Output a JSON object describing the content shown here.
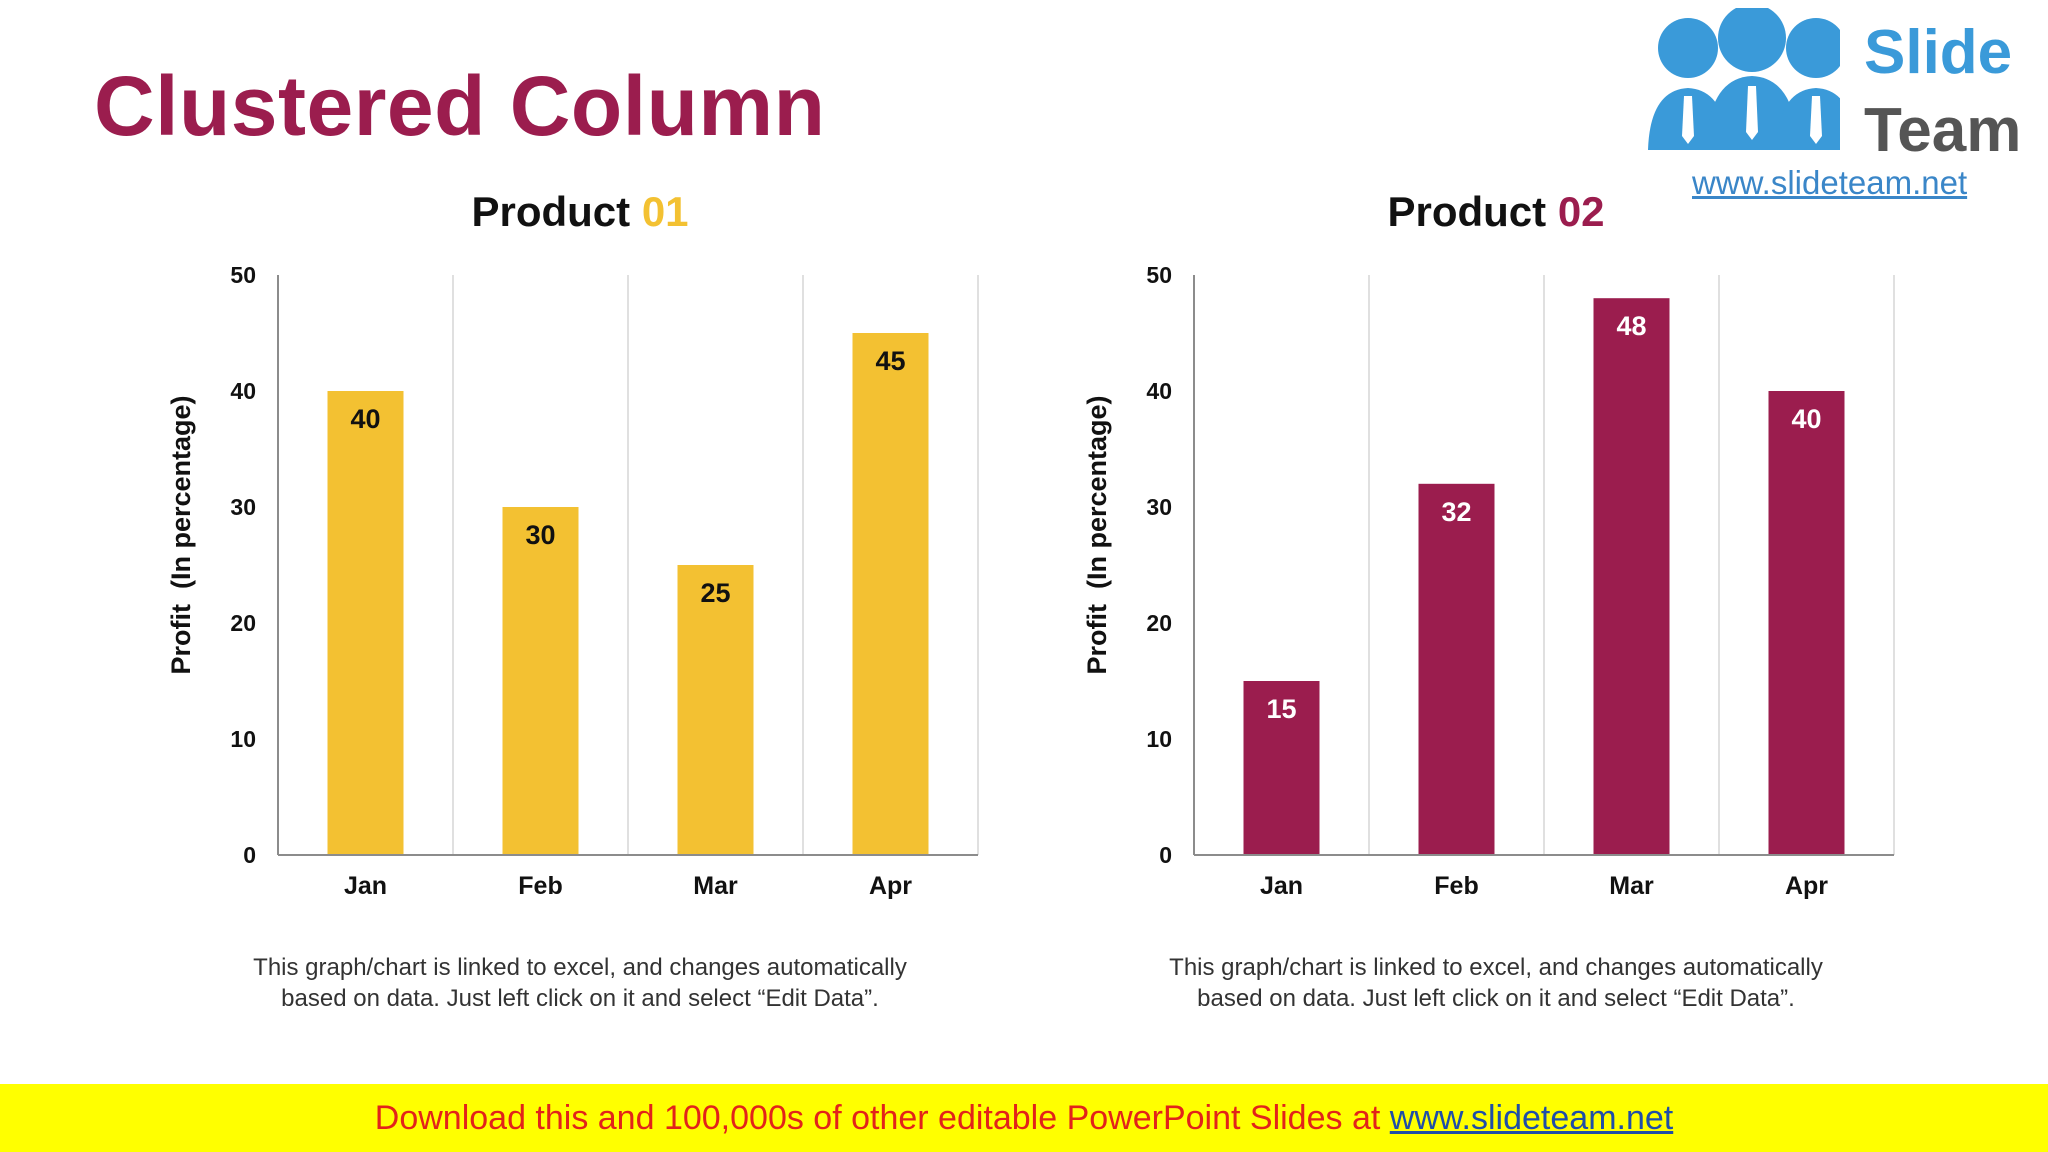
{
  "page": {
    "title": "Clustered Column",
    "logo": {
      "word1": "Slide",
      "word2": "Team",
      "url": "www.slideteam.net"
    },
    "banner": {
      "text": "Download this and 100,000s of other editable PowerPoint Slides at ",
      "link": "www.slideteam.net"
    }
  },
  "chart_data": [
    {
      "type": "bar",
      "title_main": "Product ",
      "title_num": "01",
      "title_num_color": "#f3c132",
      "bar_color": "#f3c132",
      "label_color": "#111111",
      "categories": [
        "Jan",
        "Feb",
        "Mar",
        "Apr"
      ],
      "values": [
        40,
        30,
        25,
        45
      ],
      "ylabel": "Profit  (In percentage)",
      "ylim": [
        0,
        50
      ],
      "yticks": [
        0,
        10,
        20,
        30,
        40,
        50
      ],
      "note": "This graph/chart is linked to excel, and changes automatically based on data. Just left click on it and select “Edit Data”."
    },
    {
      "type": "bar",
      "title_main": "Product ",
      "title_num": "02",
      "title_num_color": "#9b1d4e",
      "bar_color": "#9b1d4e",
      "label_color": "#ffffff",
      "categories": [
        "Jan",
        "Feb",
        "Mar",
        "Apr"
      ],
      "values": [
        15,
        32,
        48,
        40
      ],
      "ylabel": "Profit  (In percentage)",
      "ylim": [
        0,
        50
      ],
      "yticks": [
        0,
        10,
        20,
        30,
        40,
        50
      ],
      "note": "This graph/chart is linked to excel, and changes automatically based on data. Just left click on it and select “Edit Data”."
    }
  ]
}
